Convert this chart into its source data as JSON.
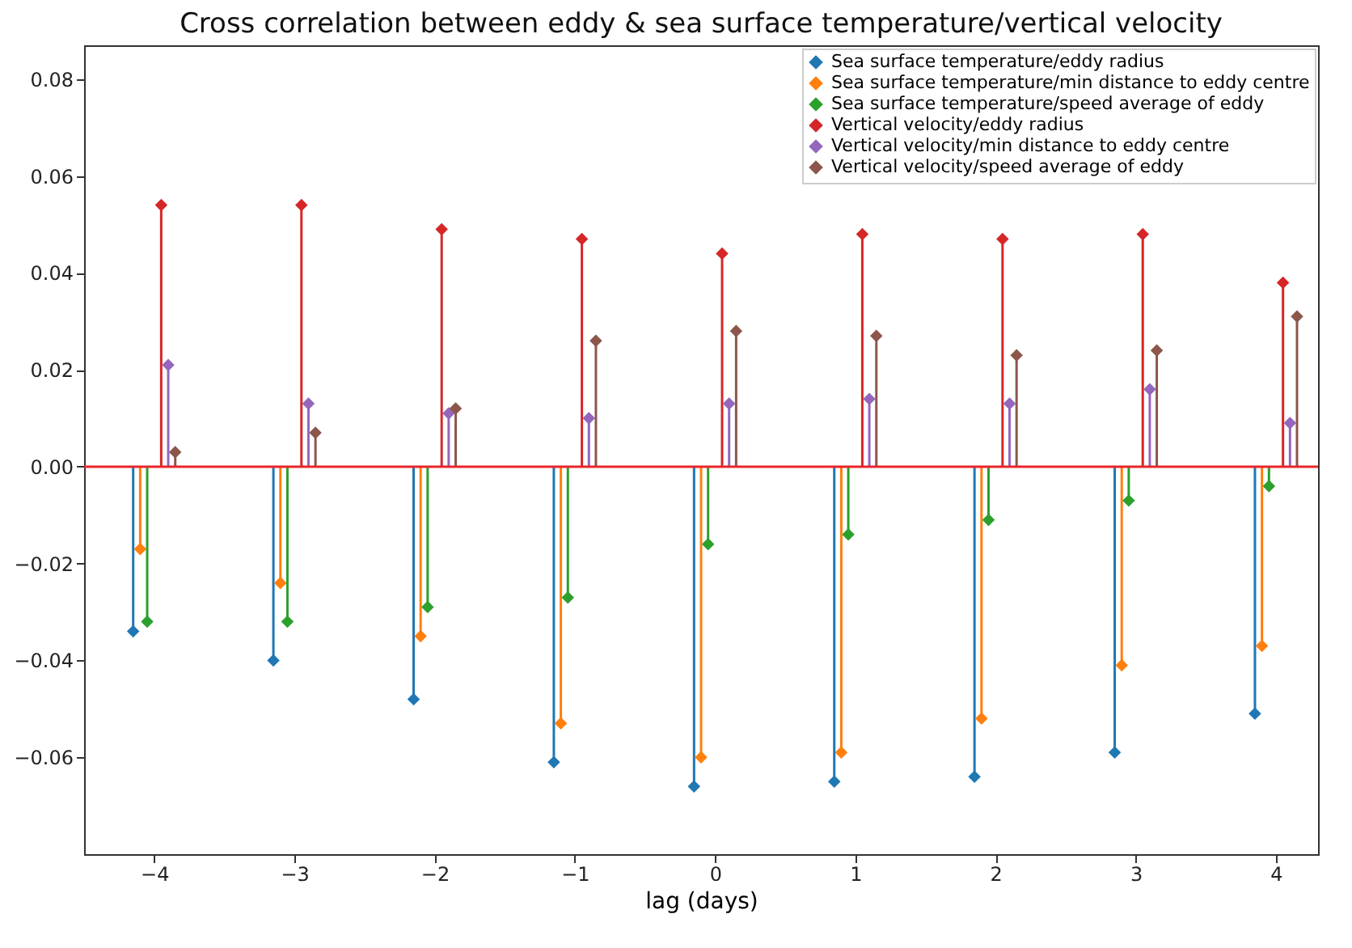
{
  "chart_data": {
    "type": "lollipop",
    "title": "Cross correlation between eddy & sea surface temperature/vertical velocity",
    "xlabel": "lag (days)",
    "xlim": [
      -4.5,
      4.3
    ],
    "xticks": [
      -4,
      -3,
      -2,
      -1,
      0,
      1,
      2,
      3,
      4
    ],
    "ylim": [
      -0.08,
      0.087
    ],
    "yticks": [
      -0.06,
      -0.04,
      -0.02,
      {
        "value": 0,
        "label": "0.00"
      },
      0.02,
      0.04,
      0.06,
      0.08
    ],
    "grid": false,
    "legend": "top right",
    "marker": "diamond",
    "ref_lines": [
      {
        "axis": "y",
        "value": 0,
        "color": "#e8262a"
      }
    ],
    "series": [
      {
        "name": "Sea surface temperature/eddy radius",
        "color": "#1f77b4",
        "x": [
          -4.15,
          -3.15,
          -2.15,
          -1.15,
          -0.15,
          0.85,
          1.85,
          2.85,
          3.85
        ],
        "values": [
          -0.034,
          -0.04,
          -0.048,
          -0.061,
          -0.066,
          -0.065,
          -0.064,
          -0.059,
          -0.051
        ]
      },
      {
        "name": "Sea surface temperature/min distance to eddy centre",
        "color": "#ff7f0e",
        "x": [
          -4.1,
          -3.1,
          -2.1,
          -1.1,
          -0.1,
          0.9,
          1.9,
          2.9,
          3.9
        ],
        "values": [
          -0.017,
          -0.024,
          -0.035,
          -0.053,
          -0.06,
          -0.059,
          -0.052,
          -0.041,
          -0.037
        ]
      },
      {
        "name": "Sea surface temperature/speed average of eddy",
        "color": "#2ca02c",
        "x": [
          -4.05,
          -3.05,
          -2.05,
          -1.05,
          -0.05,
          0.95,
          1.95,
          2.95,
          3.95
        ],
        "values": [
          -0.032,
          -0.032,
          -0.029,
          -0.027,
          -0.016,
          -0.014,
          -0.011,
          -0.007,
          -0.004
        ]
      },
      {
        "name": "Vertical velocity/eddy radius",
        "color": "#d62728",
        "x": [
          -3.95,
          -2.95,
          -1.95,
          -0.95,
          0.05,
          1.05,
          2.05,
          3.05,
          4.05
        ],
        "values": [
          0.054,
          0.054,
          0.049,
          0.047,
          0.044,
          0.048,
          0.047,
          0.048,
          0.038
        ]
      },
      {
        "name": "Vertical velocity/min distance to eddy centre",
        "color": "#9467bd",
        "x": [
          -3.9,
          -2.9,
          -1.9,
          -0.9,
          0.1,
          1.1,
          2.1,
          3.1,
          4.1
        ],
        "values": [
          0.021,
          0.013,
          0.011,
          0.01,
          0.013,
          0.014,
          0.013,
          0.016,
          0.009
        ]
      },
      {
        "name": "Vertical velocity/speed average of eddy",
        "color": "#8c564b",
        "x": [
          -3.85,
          -2.85,
          -1.85,
          -0.85,
          0.15,
          1.15,
          2.15,
          3.15,
          4.15
        ],
        "values": [
          0.003,
          0.007,
          0.012,
          0.026,
          0.028,
          0.027,
          0.023,
          0.024,
          0.031
        ]
      }
    ]
  }
}
